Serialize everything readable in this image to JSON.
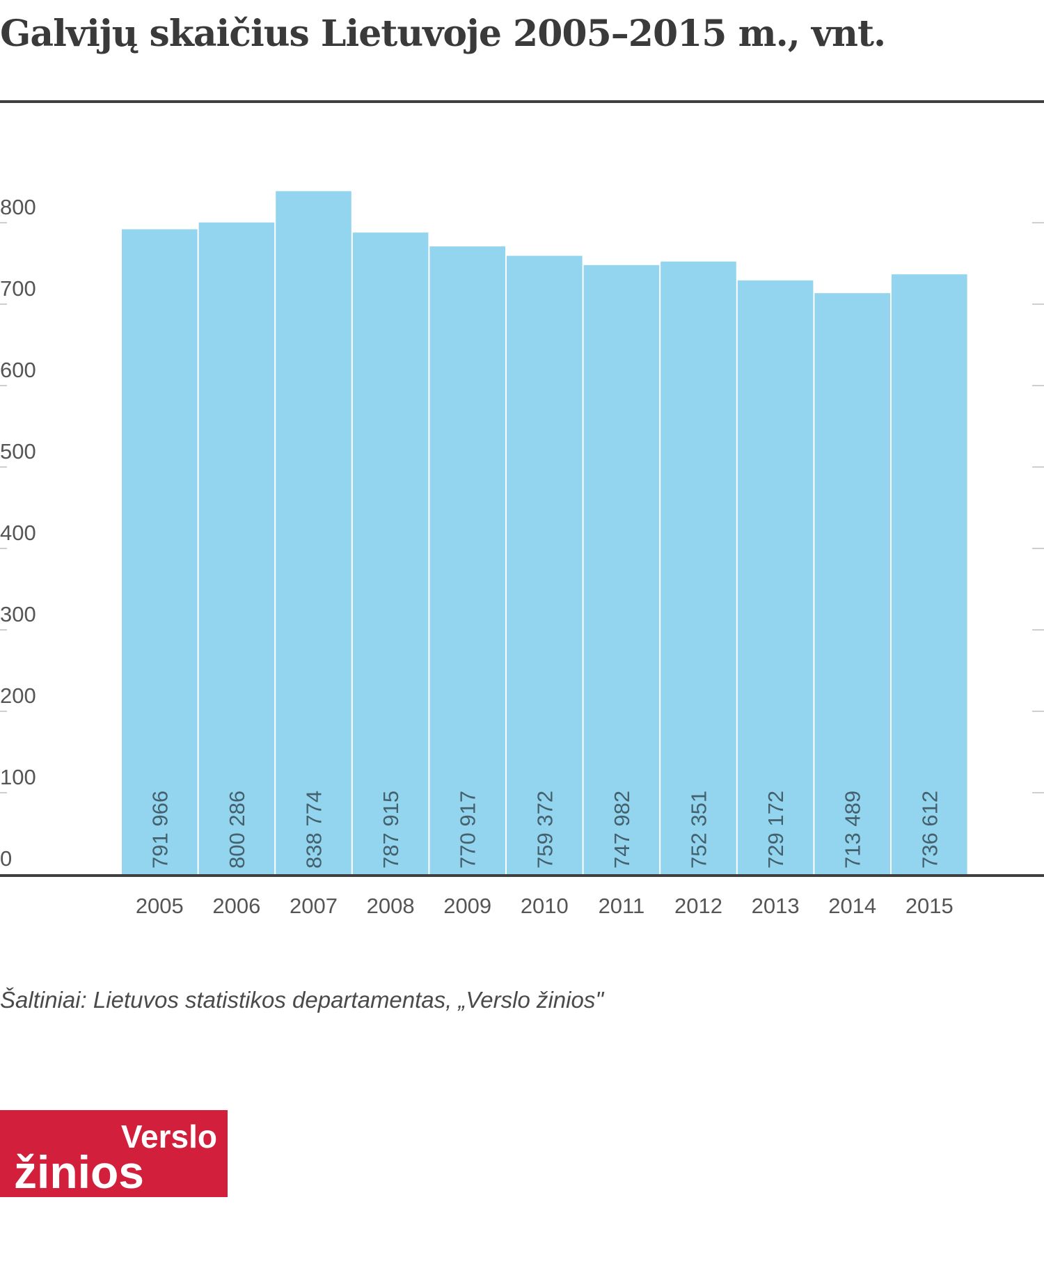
{
  "title": "Galvijų skaičius Lietuvoje 2005–2015 m., vnt.",
  "source": "Šaltiniai: Lietuvos statistikos departamentas, „Verslo žinios\"",
  "logo": {
    "line1": "Verslo",
    "line2": "žinios",
    "color": "#d21f3c"
  },
  "chart_data": {
    "type": "bar",
    "categories": [
      "2005",
      "2006",
      "2007",
      "2008",
      "2009",
      "2010",
      "2011",
      "2012",
      "2013",
      "2014",
      "2015"
    ],
    "values": [
      791966,
      800286,
      838774,
      787915,
      770917,
      759372,
      747982,
      752351,
      729172,
      713489,
      736612
    ],
    "value_labels": [
      "791 966",
      "800 286",
      "838 774",
      "787 915",
      "770 917",
      "759 372",
      "747 982",
      "752 351",
      "729 172",
      "713 489",
      "736 612"
    ],
    "y_ticks": [
      0,
      100,
      200,
      300,
      400,
      500,
      600,
      700,
      800
    ],
    "ylim": [
      0,
      800
    ],
    "title": "Galvijų skaičius Lietuvoje 2005–2015 m., vnt.",
    "xlabel": "",
    "ylabel": "",
    "grid": false,
    "bar_color": "#93d5ef"
  }
}
